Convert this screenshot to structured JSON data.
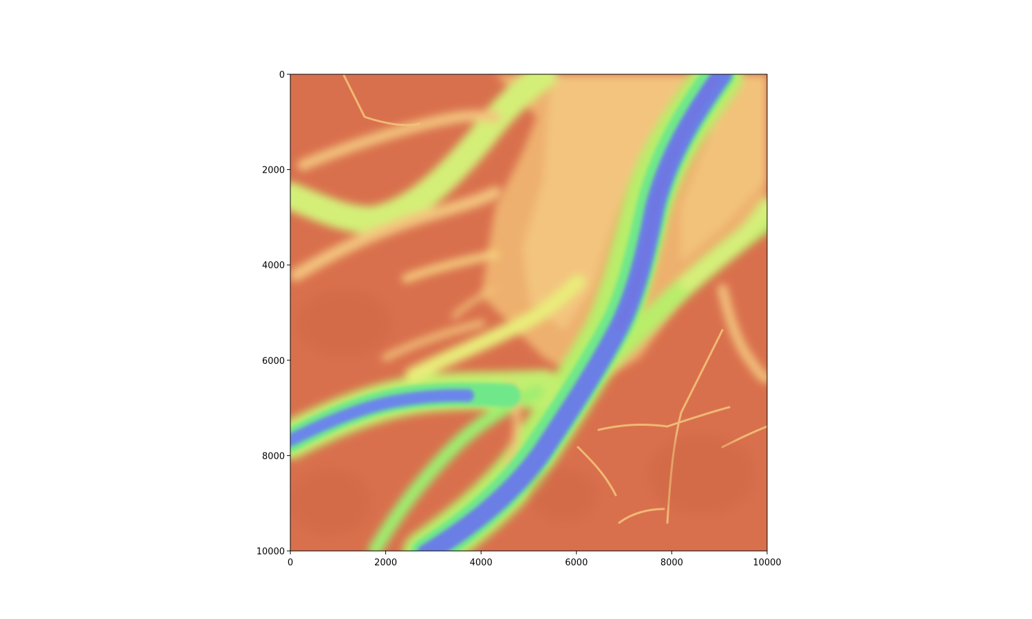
{
  "figure": {
    "type": "image",
    "description_colormap": "turbo",
    "background": "#ffffff"
  },
  "axes": {
    "x": {
      "range": [
        0,
        10000
      ],
      "ticks": [
        0,
        2000,
        4000,
        6000,
        8000,
        10000
      ],
      "tick_labels": [
        "0",
        "2000",
        "4000",
        "6000",
        "8000",
        "10000"
      ]
    },
    "y": {
      "range": [
        0,
        10000
      ],
      "inverted": true,
      "ticks": [
        0,
        2000,
        4000,
        6000,
        8000,
        10000
      ],
      "tick_labels": [
        "0",
        "2000",
        "4000",
        "6000",
        "8000",
        "10000"
      ]
    }
  },
  "colors": {
    "low_terrain": "#d9704d",
    "mid_terrain": "#f0b070",
    "bank": "#f5d27a",
    "shoal": "#b8ee6a",
    "shallow": "#6fe88a",
    "channel_edge": "#5aa8f0",
    "channel_deep": "#6a7ee6"
  }
}
